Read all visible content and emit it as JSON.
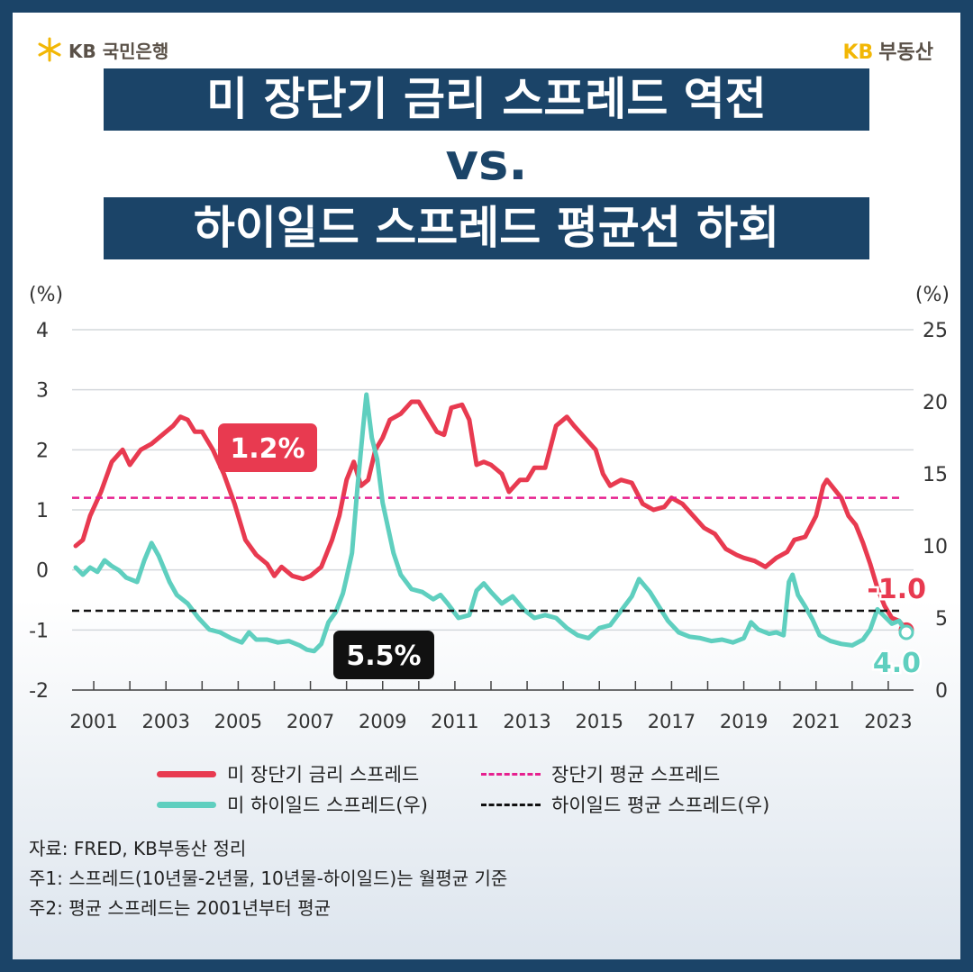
{
  "header": {
    "left_logo_text": "KB 국민은행",
    "right_logo_kb": "KB",
    "right_logo_text": "부동산"
  },
  "title": {
    "line1": "미 장단기 금리 스프레드 역전",
    "line2": "vs.",
    "line3": "하이일드 스프레드 평균선 하회"
  },
  "chart_data": {
    "type": "line",
    "left_axis": {
      "unit_label": "(%)",
      "ylim": [
        -2,
        4
      ],
      "ticks": [
        "4",
        "3",
        "2",
        "1",
        "0",
        "-1",
        "-2"
      ]
    },
    "right_axis": {
      "unit_label": "(%)",
      "ylim": [
        0,
        25
      ],
      "ticks": [
        "25",
        "20",
        "15",
        "10",
        "5",
        "0"
      ]
    },
    "x_tick_labels": [
      "2001",
      "2003",
      "2005",
      "2007",
      "2009",
      "2011",
      "2013",
      "2015",
      "2017",
      "2019",
      "2021",
      "2023"
    ],
    "xlim": [
      2000.4,
      2023.7
    ],
    "grid": true,
    "series": [
      {
        "name": "미 장단기 금리 스프레드",
        "axis": "left",
        "color": "#e83a50",
        "points": [
          [
            2000.5,
            0.4
          ],
          [
            2000.7,
            0.5
          ],
          [
            2000.9,
            0.9
          ],
          [
            2001.2,
            1.3
          ],
          [
            2001.5,
            1.8
          ],
          [
            2001.8,
            2.0
          ],
          [
            2002.0,
            1.75
          ],
          [
            2002.3,
            2.0
          ],
          [
            2002.6,
            2.1
          ],
          [
            2002.9,
            2.25
          ],
          [
            2003.2,
            2.4
          ],
          [
            2003.4,
            2.55
          ],
          [
            2003.6,
            2.5
          ],
          [
            2003.8,
            2.3
          ],
          [
            2004.0,
            2.3
          ],
          [
            2004.3,
            2.0
          ],
          [
            2004.6,
            1.6
          ],
          [
            2004.9,
            1.1
          ],
          [
            2005.2,
            0.5
          ],
          [
            2005.5,
            0.25
          ],
          [
            2005.8,
            0.1
          ],
          [
            2006.0,
            -0.1
          ],
          [
            2006.2,
            0.05
          ],
          [
            2006.5,
            -0.1
          ],
          [
            2006.8,
            -0.15
          ],
          [
            2007.0,
            -0.1
          ],
          [
            2007.3,
            0.05
          ],
          [
            2007.6,
            0.5
          ],
          [
            2007.8,
            0.9
          ],
          [
            2008.0,
            1.5
          ],
          [
            2008.2,
            1.8
          ],
          [
            2008.4,
            1.4
          ],
          [
            2008.6,
            1.5
          ],
          [
            2008.8,
            2.0
          ],
          [
            2009.0,
            2.2
          ],
          [
            2009.2,
            2.5
          ],
          [
            2009.5,
            2.6
          ],
          [
            2009.8,
            2.8
          ],
          [
            2010.0,
            2.8
          ],
          [
            2010.2,
            2.6
          ],
          [
            2010.5,
            2.3
          ],
          [
            2010.7,
            2.25
          ],
          [
            2010.9,
            2.7
          ],
          [
            2011.2,
            2.75
          ],
          [
            2011.4,
            2.5
          ],
          [
            2011.6,
            1.75
          ],
          [
            2011.8,
            1.8
          ],
          [
            2012.0,
            1.75
          ],
          [
            2012.3,
            1.6
          ],
          [
            2012.5,
            1.3
          ],
          [
            2012.8,
            1.5
          ],
          [
            2013.0,
            1.5
          ],
          [
            2013.2,
            1.7
          ],
          [
            2013.5,
            1.7
          ],
          [
            2013.8,
            2.4
          ],
          [
            2014.1,
            2.55
          ],
          [
            2014.3,
            2.4
          ],
          [
            2014.6,
            2.2
          ],
          [
            2014.9,
            2.0
          ],
          [
            2015.1,
            1.6
          ],
          [
            2015.3,
            1.4
          ],
          [
            2015.6,
            1.5
          ],
          [
            2015.9,
            1.45
          ],
          [
            2016.2,
            1.1
          ],
          [
            2016.5,
            1.0
          ],
          [
            2016.8,
            1.05
          ],
          [
            2017.0,
            1.2
          ],
          [
            2017.3,
            1.1
          ],
          [
            2017.6,
            0.9
          ],
          [
            2017.9,
            0.7
          ],
          [
            2018.2,
            0.6
          ],
          [
            2018.5,
            0.35
          ],
          [
            2018.8,
            0.25
          ],
          [
            2019.0,
            0.2
          ],
          [
            2019.3,
            0.15
          ],
          [
            2019.6,
            0.05
          ],
          [
            2019.9,
            0.2
          ],
          [
            2020.2,
            0.3
          ],
          [
            2020.4,
            0.5
          ],
          [
            2020.7,
            0.55
          ],
          [
            2021.0,
            0.9
          ],
          [
            2021.2,
            1.4
          ],
          [
            2021.3,
            1.5
          ],
          [
            2021.5,
            1.35
          ],
          [
            2021.7,
            1.2
          ],
          [
            2021.9,
            0.9
          ],
          [
            2022.1,
            0.75
          ],
          [
            2022.3,
            0.45
          ],
          [
            2022.5,
            0.1
          ],
          [
            2022.7,
            -0.3
          ],
          [
            2022.9,
            -0.6
          ],
          [
            2023.1,
            -0.8
          ],
          [
            2023.3,
            -0.85
          ],
          [
            2023.5,
            -1.0
          ]
        ]
      },
      {
        "name": "장단기 평균 스프레드",
        "axis": "left",
        "color": "#e6208f",
        "dashed": true,
        "value": 1.2
      },
      {
        "name": "미 하이일드 스프레드(우)",
        "axis": "right",
        "color": "#5fcfbf",
        "points": [
          [
            2000.5,
            8.5
          ],
          [
            2000.7,
            8.0
          ],
          [
            2000.9,
            8.5
          ],
          [
            2001.1,
            8.2
          ],
          [
            2001.3,
            9.0
          ],
          [
            2001.5,
            8.6
          ],
          [
            2001.7,
            8.3
          ],
          [
            2001.9,
            7.8
          ],
          [
            2002.2,
            7.5
          ],
          [
            2002.4,
            9.0
          ],
          [
            2002.6,
            10.2
          ],
          [
            2002.8,
            9.3
          ],
          [
            2003.1,
            7.5
          ],
          [
            2003.3,
            6.6
          ],
          [
            2003.6,
            6.0
          ],
          [
            2003.9,
            5.0
          ],
          [
            2004.2,
            4.2
          ],
          [
            2004.5,
            4.0
          ],
          [
            2004.8,
            3.6
          ],
          [
            2005.1,
            3.3
          ],
          [
            2005.3,
            4.0
          ],
          [
            2005.5,
            3.5
          ],
          [
            2005.8,
            3.5
          ],
          [
            2006.1,
            3.3
          ],
          [
            2006.4,
            3.4
          ],
          [
            2006.7,
            3.1
          ],
          [
            2006.9,
            2.8
          ],
          [
            2007.1,
            2.7
          ],
          [
            2007.3,
            3.2
          ],
          [
            2007.5,
            4.7
          ],
          [
            2007.7,
            5.4
          ],
          [
            2007.9,
            6.7
          ],
          [
            2008.0,
            7.8
          ],
          [
            2008.15,
            9.5
          ],
          [
            2008.3,
            14.0
          ],
          [
            2008.45,
            18.0
          ],
          [
            2008.55,
            20.5
          ],
          [
            2008.7,
            17.5
          ],
          [
            2008.85,
            16.0
          ],
          [
            2009.0,
            13.0
          ],
          [
            2009.3,
            9.5
          ],
          [
            2009.5,
            8.0
          ],
          [
            2009.8,
            7.0
          ],
          [
            2010.1,
            6.8
          ],
          [
            2010.4,
            6.3
          ],
          [
            2010.6,
            6.6
          ],
          [
            2010.8,
            6.0
          ],
          [
            2011.1,
            5.0
          ],
          [
            2011.4,
            5.2
          ],
          [
            2011.6,
            6.9
          ],
          [
            2011.8,
            7.4
          ],
          [
            2012.0,
            6.8
          ],
          [
            2012.3,
            6.0
          ],
          [
            2012.6,
            6.5
          ],
          [
            2012.9,
            5.6
          ],
          [
            2013.2,
            5.0
          ],
          [
            2013.5,
            5.2
          ],
          [
            2013.8,
            5.0
          ],
          [
            2014.1,
            4.3
          ],
          [
            2014.4,
            3.8
          ],
          [
            2014.7,
            3.6
          ],
          [
            2015.0,
            4.3
          ],
          [
            2015.3,
            4.5
          ],
          [
            2015.6,
            5.5
          ],
          [
            2015.9,
            6.5
          ],
          [
            2016.1,
            7.7
          ],
          [
            2016.4,
            6.8
          ],
          [
            2016.7,
            5.6
          ],
          [
            2016.9,
            4.8
          ],
          [
            2017.2,
            4.0
          ],
          [
            2017.5,
            3.7
          ],
          [
            2017.8,
            3.6
          ],
          [
            2018.1,
            3.4
          ],
          [
            2018.4,
            3.5
          ],
          [
            2018.7,
            3.3
          ],
          [
            2019.0,
            3.6
          ],
          [
            2019.2,
            4.7
          ],
          [
            2019.4,
            4.2
          ],
          [
            2019.7,
            3.9
          ],
          [
            2019.9,
            4.0
          ],
          [
            2020.1,
            3.8
          ],
          [
            2020.25,
            7.5
          ],
          [
            2020.35,
            8.0
          ],
          [
            2020.5,
            6.6
          ],
          [
            2020.7,
            5.8
          ],
          [
            2020.9,
            4.9
          ],
          [
            2021.1,
            3.8
          ],
          [
            2021.4,
            3.4
          ],
          [
            2021.7,
            3.2
          ],
          [
            2022.0,
            3.1
          ],
          [
            2022.3,
            3.5
          ],
          [
            2022.5,
            4.2
          ],
          [
            2022.7,
            5.6
          ],
          [
            2022.9,
            5.1
          ],
          [
            2023.1,
            4.6
          ],
          [
            2023.3,
            4.8
          ],
          [
            2023.5,
            4.0
          ]
        ]
      },
      {
        "name": "하이일드 평균 스프레드(우)",
        "axis": "right",
        "color": "#111111",
        "dashed": true,
        "value": 5.5
      }
    ],
    "annotations": [
      {
        "text": "1.2%",
        "style": "red-box"
      },
      {
        "text": "5.5%",
        "style": "black-box"
      },
      {
        "text": "-1.0",
        "style": "red-outline-text"
      },
      {
        "text": "4.0",
        "style": "teal-outline-text"
      }
    ]
  },
  "legend": [
    [
      "미 장단기 금리 스프레드",
      "장단기 평균 스프레드"
    ],
    [
      "미 하이일드 스프레드(우)",
      "하이일드 평균 스프레드(우)"
    ]
  ],
  "notes": [
    "자료: FRED, KB부동산 정리",
    "주1: 스프레드(10년물-2년물, 10년물-하이일드)는 월평균 기준",
    "주2: 평균 스프레드는 2001년부터 평균"
  ]
}
